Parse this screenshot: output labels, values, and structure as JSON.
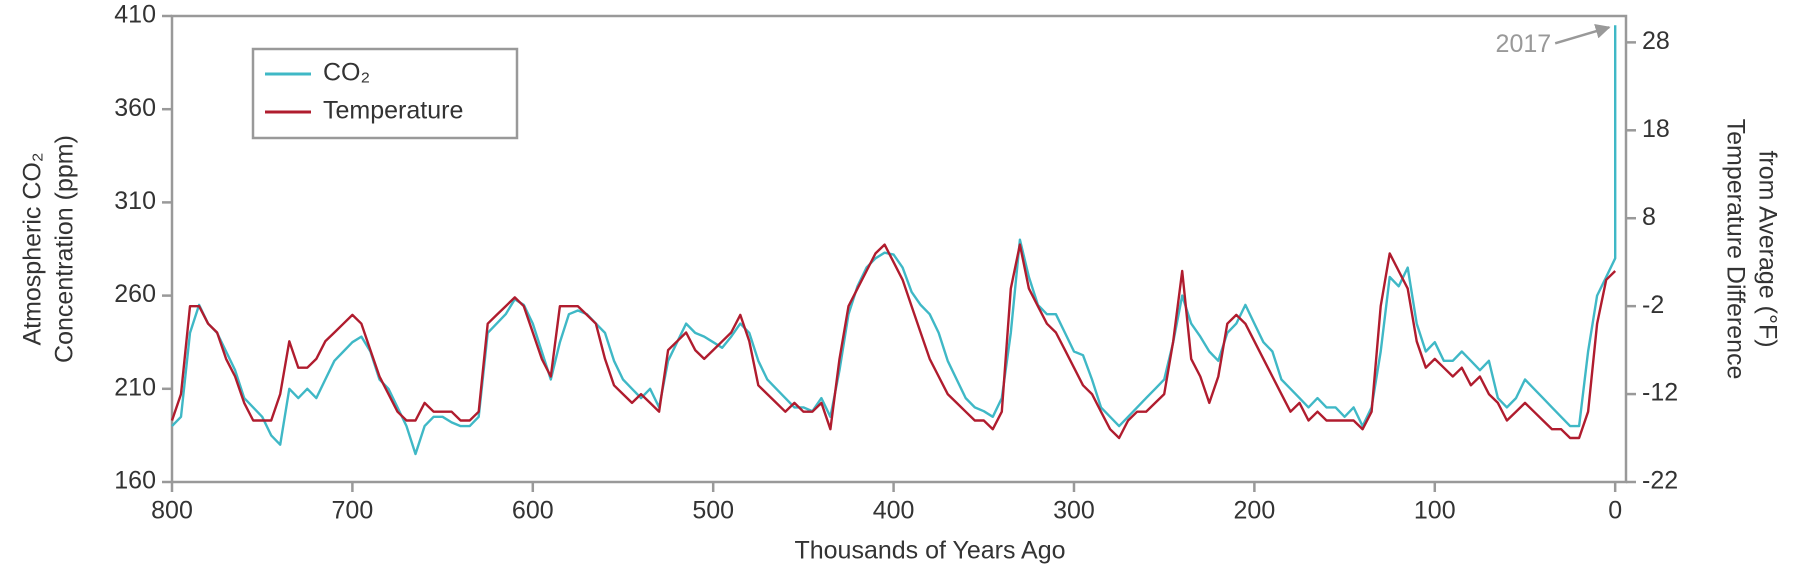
{
  "chart_data": {
    "type": "line",
    "xlabel": "Thousands of Years Ago",
    "ylabel": [
      "Atmospheric CO₂",
      "Concentration (ppm)"
    ],
    "y2label": [
      "Temperature Difference",
      "from Average (°F)"
    ],
    "annotation": "2017",
    "xlim": [
      800,
      -6
    ],
    "xticks": [
      800,
      700,
      600,
      500,
      400,
      300,
      200,
      100,
      0
    ],
    "ylim": [
      160,
      410
    ],
    "yticks": [
      410,
      360,
      310,
      260,
      210,
      160
    ],
    "y2lim": [
      -22,
      31
    ],
    "y2ticks": [
      28,
      18,
      8,
      -2,
      -12,
      -22
    ],
    "legend": "upper left",
    "x": [
      800,
      795,
      790,
      785,
      780,
      775,
      770,
      765,
      760,
      755,
      750,
      745,
      740,
      735,
      730,
      725,
      720,
      715,
      710,
      705,
      700,
      695,
      690,
      685,
      680,
      675,
      670,
      665,
      660,
      655,
      650,
      645,
      640,
      635,
      630,
      625,
      620,
      615,
      610,
      605,
      600,
      595,
      590,
      585,
      580,
      575,
      570,
      565,
      560,
      555,
      550,
      545,
      540,
      535,
      530,
      525,
      520,
      515,
      510,
      505,
      500,
      495,
      490,
      485,
      480,
      475,
      470,
      465,
      460,
      455,
      450,
      445,
      440,
      435,
      430,
      425,
      420,
      415,
      410,
      405,
      400,
      395,
      390,
      385,
      380,
      375,
      370,
      365,
      360,
      355,
      350,
      345,
      340,
      335,
      330,
      325,
      320,
      315,
      310,
      305,
      300,
      295,
      290,
      285,
      280,
      275,
      270,
      265,
      260,
      255,
      250,
      245,
      240,
      235,
      230,
      225,
      220,
      215,
      210,
      205,
      200,
      195,
      190,
      185,
      180,
      175,
      170,
      165,
      160,
      155,
      150,
      145,
      140,
      135,
      130,
      125,
      120,
      115,
      110,
      105,
      100,
      95,
      90,
      85,
      80,
      75,
      70,
      65,
      60,
      55,
      50,
      45,
      40,
      35,
      30,
      25,
      20,
      15,
      10,
      5,
      0,
      0
    ],
    "series": [
      {
        "name": "CO₂",
        "color": "#3fb8c6",
        "axis": "y",
        "values": [
          190,
          195,
          240,
          255,
          245,
          240,
          230,
          220,
          205,
          200,
          195,
          185,
          180,
          210,
          205,
          210,
          205,
          215,
          225,
          230,
          235,
          238,
          230,
          215,
          210,
          200,
          190,
          175,
          190,
          195,
          195,
          192,
          190,
          190,
          195,
          240,
          245,
          250,
          258,
          255,
          245,
          230,
          215,
          235,
          250,
          252,
          250,
          245,
          240,
          225,
          215,
          210,
          205,
          210,
          200,
          225,
          235,
          245,
          240,
          238,
          235,
          232,
          238,
          245,
          240,
          225,
          215,
          210,
          205,
          200,
          200,
          198,
          205,
          195,
          220,
          250,
          265,
          275,
          280,
          283,
          282,
          275,
          262,
          255,
          250,
          240,
          225,
          215,
          205,
          200,
          198,
          195,
          205,
          240,
          290,
          270,
          255,
          250,
          250,
          240,
          230,
          228,
          215,
          200,
          195,
          190,
          195,
          200,
          205,
          210,
          215,
          235,
          260,
          245,
          238,
          230,
          225,
          240,
          245,
          255,
          245,
          235,
          230,
          215,
          210,
          205,
          200,
          205,
          200,
          200,
          195,
          200,
          190,
          200,
          230,
          270,
          265,
          275,
          245,
          230,
          235,
          225,
          225,
          230,
          225,
          220,
          225,
          205,
          200,
          205,
          215,
          210,
          205,
          200,
          195,
          190,
          190,
          230,
          260,
          270,
          280,
          405
        ]
      },
      {
        "name": "Temperature",
        "color": "#b01c2e",
        "axis": "y2",
        "values": [
          -15,
          -12,
          -2,
          -2,
          -4,
          -5,
          -8,
          -10,
          -13,
          -15,
          -15,
          -15,
          -12,
          -6,
          -9,
          -9,
          -8,
          -6,
          -5,
          -4,
          -3,
          -4,
          -7,
          -10,
          -12,
          -14,
          -15,
          -15,
          -13,
          -14,
          -14,
          -14,
          -15,
          -15,
          -14,
          -4,
          -3,
          -2,
          -1,
          -2,
          -5,
          -8,
          -10,
          -2,
          -2,
          -2,
          -3,
          -4,
          -8,
          -11,
          -12,
          -13,
          -12,
          -13,
          -14,
          -7,
          -6,
          -5,
          -7,
          -8,
          -7,
          -6,
          -5,
          -3,
          -6,
          -11,
          -12,
          -13,
          -14,
          -13,
          -14,
          -14,
          -13,
          -16,
          -8,
          -2,
          0,
          2,
          4,
          5,
          3,
          1,
          -2,
          -5,
          -8,
          -10,
          -12,
          -13,
          -14,
          -15,
          -15,
          -16,
          -14,
          0,
          5,
          0,
          -2,
          -4,
          -5,
          -7,
          -9,
          -11,
          -12,
          -14,
          -16,
          -17,
          -15,
          -14,
          -14,
          -13,
          -12,
          -6,
          2,
          -8,
          -10,
          -13,
          -10,
          -4,
          -3,
          -4,
          -6,
          -8,
          -10,
          -12,
          -14,
          -13,
          -15,
          -14,
          -15,
          -15,
          -15,
          -15,
          -16,
          -14,
          -2,
          4,
          2,
          0,
          -6,
          -9,
          -8,
          -9,
          -10,
          -9,
          -11,
          -10,
          -12,
          -13,
          -15,
          -14,
          -13,
          -14,
          -15,
          -16,
          -16,
          -17,
          -17,
          -14,
          -4,
          1,
          2,
          null
        ]
      }
    ]
  }
}
